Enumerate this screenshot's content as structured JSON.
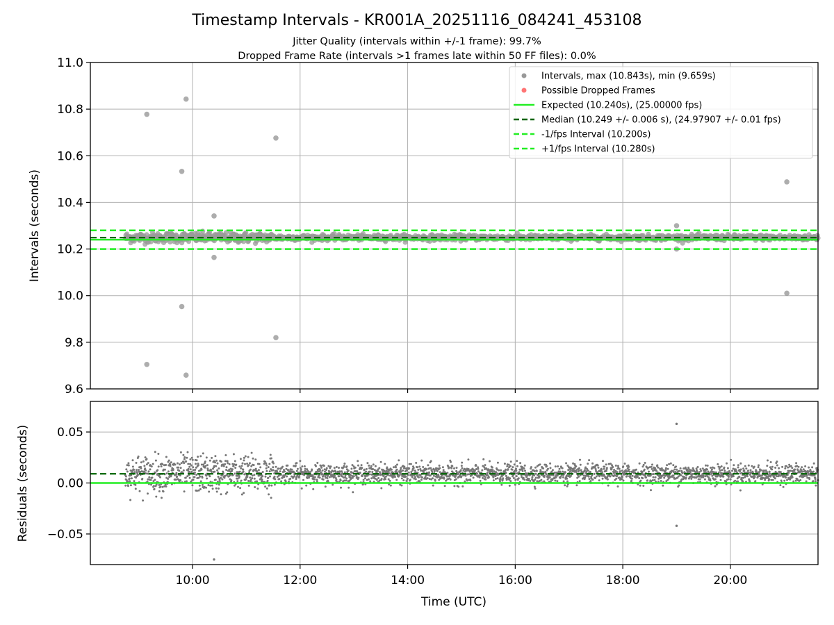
{
  "figure": {
    "title": "Timestamp Intervals - KR001A_20251116_084241_453108",
    "subtitle1": "Jitter Quality (intervals within +/-1 frame): 99.7%",
    "subtitle2": "Dropped Frame Rate (intervals >1 frames late within 50 FF files): 0.0%"
  },
  "colors": {
    "interval_points": "#999999",
    "dropped_points": "#ff6666",
    "expected_line": "#22ee22",
    "median_line": "#006400",
    "band_lines": "#22ee22",
    "grid": "#b0b0b0",
    "residual_points": "#777777"
  },
  "chart_data": [
    {
      "type": "scatter",
      "name": "intervals",
      "ylabel": "Intervals (seconds)",
      "xlabel": "",
      "ylim": [
        9.6,
        11.0
      ],
      "xlim_hours": [
        8.1,
        21.63
      ],
      "grid": true,
      "legend_position": "top-right",
      "y_ticks": [
        "9.6",
        "9.8",
        "10.0",
        "10.2",
        "10.4",
        "10.6",
        "10.8",
        "11.0"
      ],
      "x_ticks_hours": [
        10,
        12,
        14,
        16,
        18,
        20
      ],
      "series_range_hours": [
        8.75,
        21.63
      ],
      "expected": 10.24,
      "median": 10.249,
      "band_low": 10.2,
      "band_high": 10.28,
      "legend": [
        "Intervals, max (10.843s), min (9.659s)",
        "Possible Dropped Frames",
        "Expected (10.240s), (25.00000 fps)",
        "Median (10.249 +/- 0.006 s), (24.97907 +/- 0.01 fps)",
        "-1/fps Interval (10.200s)",
        "+1/fps Interval (10.280s)"
      ],
      "outliers": [
        {
          "x": 9.15,
          "y": 10.778
        },
        {
          "x": 9.15,
          "y": 9.705
        },
        {
          "x": 9.8,
          "y": 10.533
        },
        {
          "x": 9.8,
          "y": 9.953
        },
        {
          "x": 9.88,
          "y": 10.843
        },
        {
          "x": 9.88,
          "y": 9.659
        },
        {
          "x": 10.4,
          "y": 10.342
        },
        {
          "x": 10.4,
          "y": 10.164
        },
        {
          "x": 11.55,
          "y": 10.676
        },
        {
          "x": 11.55,
          "y": 9.82
        },
        {
          "x": 19.0,
          "y": 10.3
        },
        {
          "x": 19.0,
          "y": 10.2
        },
        {
          "x": 21.05,
          "y": 10.488
        },
        {
          "x": 21.05,
          "y": 10.01
        }
      ]
    },
    {
      "type": "scatter",
      "name": "residuals",
      "ylabel": "Residuals (seconds)",
      "xlabel": "Time (UTC)",
      "ylim": [
        -0.08,
        0.08
      ],
      "xlim_hours": [
        8.1,
        21.63
      ],
      "grid": true,
      "y_ticks": [
        "−0.05",
        "0.00",
        "0.05"
      ],
      "y_tick_values": [
        -0.05,
        0.0,
        0.05
      ],
      "x_tick_labels": [
        "10:00",
        "12:00",
        "14:00",
        "16:00",
        "18:00",
        "20:00"
      ],
      "x_ticks_hours": [
        10,
        12,
        14,
        16,
        18,
        20
      ],
      "expected": 0.0,
      "median": 0.009,
      "outliers": [
        {
          "x": 10.4,
          "y": -0.075
        },
        {
          "x": 19.0,
          "y": 0.058
        },
        {
          "x": 19.0,
          "y": -0.042
        }
      ]
    }
  ]
}
